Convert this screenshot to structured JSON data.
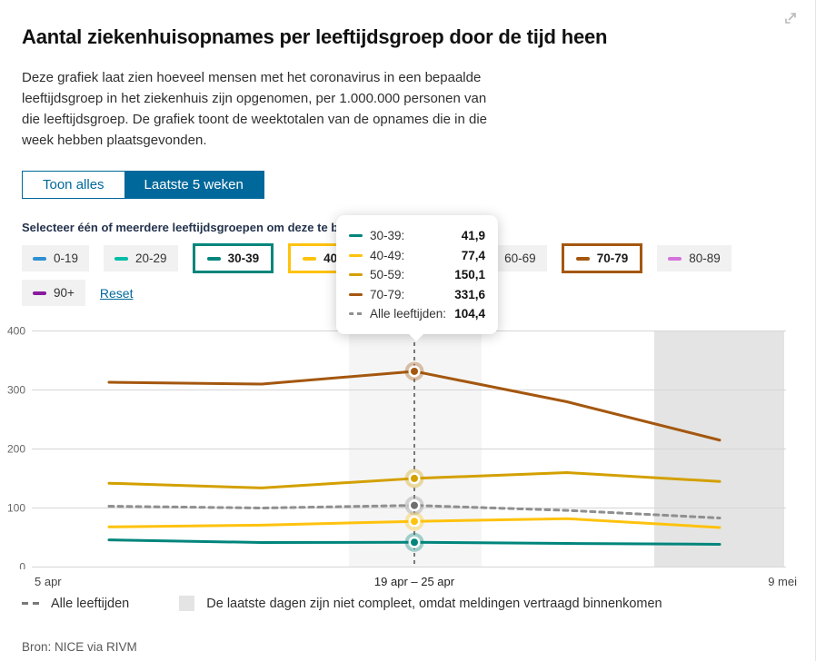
{
  "header": {
    "title": "Aantal ziekenhuisopnames per leeftijdsgroep door de tijd heen",
    "intro": "Deze grafiek laat zien hoeveel mensen met het coronavirus in een bepaalde leeftijdsgroep in het ziekenhuis zijn opgenomen, per 1.000.000 personen van die leeftijdsgroep. De grafiek toont de weektotalen van de opnames die in die week hebben plaatsgevonden."
  },
  "controls": {
    "show_all_label": "Toon alles",
    "last_5_weeks_label": "Laatste 5 weken",
    "active_tab": "Laatste 5 weken",
    "select_heading": "Selecteer één of meerdere leeftijdsgroepen om deze te bekijken",
    "reset_label": "Reset"
  },
  "age_groups": [
    {
      "label": "0-19",
      "color": "#2E8FD0",
      "selected": false
    },
    {
      "label": "20-29",
      "color": "#00BDA8",
      "selected": false
    },
    {
      "label": "30-39",
      "color": "#00857C",
      "selected": true
    },
    {
      "label": "40-49",
      "color": "#FFC20E",
      "selected": true
    },
    {
      "label": "50-59",
      "color": "#D3A000",
      "selected": false
    },
    {
      "label": "60-69",
      "color": "#C27600",
      "selected": false
    },
    {
      "label": "70-79",
      "color": "#A4570F",
      "selected": true
    },
    {
      "label": "80-89",
      "color": "#D473DB",
      "selected": false
    },
    {
      "label": "90+",
      "color": "#8A1A9E",
      "selected": false
    }
  ],
  "tooltip": {
    "rows": [
      {
        "label": "30-39:",
        "value": "41,9",
        "color": "#00857C",
        "dashed": false
      },
      {
        "label": "40-49:",
        "value": "77,4",
        "color": "#FFC20E",
        "dashed": false
      },
      {
        "label": "50-59:",
        "value": "150,1",
        "color": "#D3A000",
        "dashed": false
      },
      {
        "label": "70-79:",
        "value": "331,6",
        "color": "#A4570F",
        "dashed": false
      },
      {
        "label": "Alle leeftijden:",
        "value": "104,4",
        "color": "#8F8F8F",
        "dashed": true
      }
    ]
  },
  "chart_data": {
    "type": "line",
    "title": "Aantal ziekenhuisopnames per leeftijdsgroep door de tijd heen",
    "x_axis": {
      "start": "5 apr",
      "hover": "19 apr – 25 apr",
      "end": "9 mei"
    },
    "y_ticks": [
      0,
      100,
      200,
      300,
      400
    ],
    "ylim": [
      0,
      400
    ],
    "grid": true,
    "hover_index": 2,
    "weeks": 5,
    "series": [
      {
        "name": "70-79",
        "color": "#A4570F",
        "dashed": false,
        "values": [
          313,
          310,
          331.6,
          280,
          215
        ]
      },
      {
        "name": "50-59",
        "color": "#D3A000",
        "dashed": false,
        "values": [
          142,
          134,
          150.1,
          160,
          145
        ]
      },
      {
        "name": "40-49",
        "color": "#FFC20E",
        "dashed": false,
        "values": [
          68,
          71,
          77.4,
          82,
          67
        ]
      },
      {
        "name": "30-39",
        "color": "#00857C",
        "dashed": false,
        "values": [
          46,
          41.5,
          41.9,
          40,
          38.5
        ]
      },
      {
        "name": "Alle leeftijden",
        "color": "#8F8F8F",
        "dashed": true,
        "values": [
          103,
          100,
          104.4,
          96,
          83
        ]
      }
    ],
    "dot_inner_gray": "#6E6E6E"
  },
  "footer": {
    "all_ages_label": "Alle leeftijden",
    "incomplete_note": "De laatste dagen zijn niet compleet, omdat meldingen vertraagd binnenkomen",
    "source": "Bron: NICE via RIVM"
  },
  "colors": {
    "accent_blue": "#01689B",
    "grid_line": "#d6d6d6",
    "hover_band": "#f5f5f5",
    "incomplete_band": "#e4e4e4",
    "hover_dash_line": "#4f4f4f"
  }
}
